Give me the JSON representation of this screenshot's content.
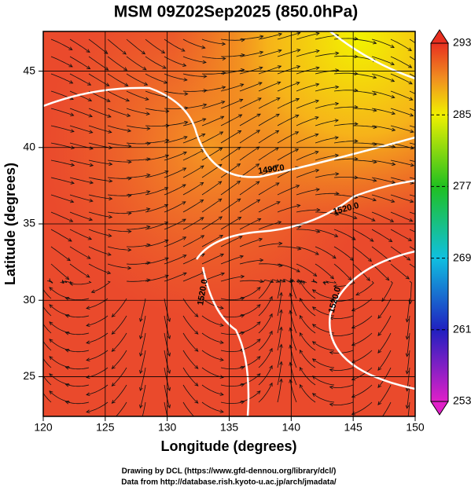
{
  "map": {
    "title": "MSM 09Z02Sep2025 (850.0hPa)",
    "x_label": "Longitude (degrees)",
    "y_label": "Latitude  (degrees)",
    "xlim": [
      120,
      150
    ],
    "ylim": [
      22.4,
      47.6
    ],
    "xticks": [
      120,
      125,
      130,
      135,
      140,
      145,
      150
    ],
    "yticks": [
      25,
      30,
      35,
      40,
      45
    ],
    "colorbar": {
      "lim": [
        253,
        293
      ],
      "ticks": [
        253,
        261,
        269,
        277,
        285,
        293
      ]
    },
    "contour_labels": [
      "1490.0",
      "1520.0",
      "1520.0",
      "1520.0"
    ]
  },
  "footer": {
    "line1": "Drawing by DCL (https://www.gfd-dennou.org/library/dcl/)",
    "line2": "Data from http://database.rish.kyoto-u.ac.jp/arch/jmadata/"
  }
}
